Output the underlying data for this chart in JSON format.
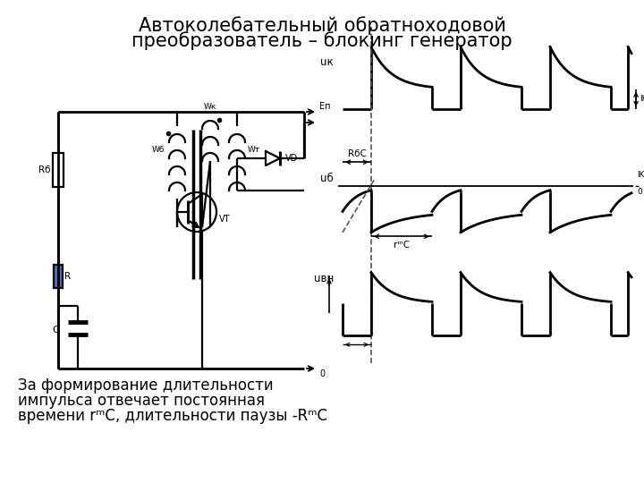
{
  "title_line1": "Автоколебательный обратноходовой",
  "title_line2": "преобразователь – блокинг генератор",
  "title_fontsize": 15,
  "caption_line1": "За формирование длительности",
  "caption_line2": "импульса отвечает постоянная",
  "caption_line3": "времени rᵐC, длительности паузы -RᵐC",
  "caption_fontsize": 12,
  "background_color": "#ffffff",
  "line_color": "#000000",
  "blue_rect_color": "#4472c4",
  "label_uk": "uк",
  "label_ub": "uб",
  "label_uwh": "uвн",
  "label_Rb": "Rб",
  "label_R": "R",
  "label_C": "C",
  "label_Wk": "Wк",
  "label_Wb": "Wб",
  "label_Wt": "Wт",
  "label_VD": "VD",
  "label_VT": "VT",
  "label_Eu": "Eп",
  "label_0": "0",
  "label_RbC": "RбC",
  "label_rbC": "rᵐC",
  "label_IK": "IK",
  "label_IKbr": "IK"
}
